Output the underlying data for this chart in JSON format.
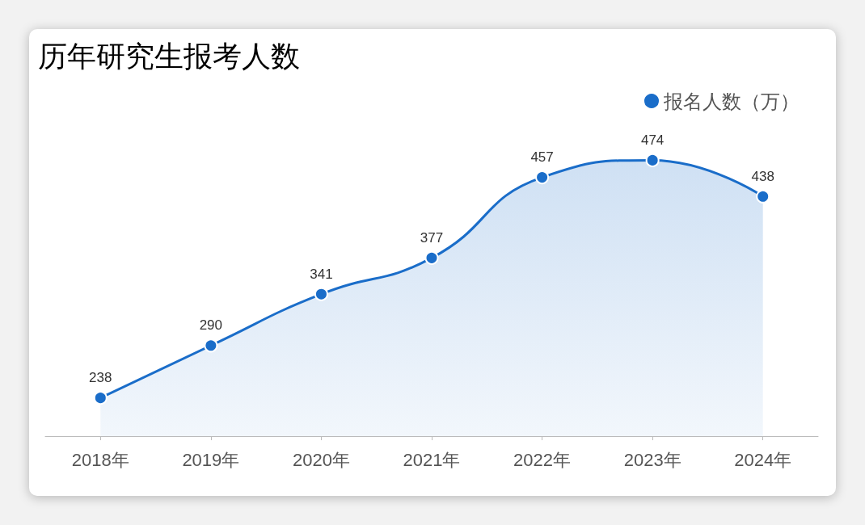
{
  "chart_data": {
    "type": "area",
    "title": "历年研究生报考人数",
    "categories": [
      "2018年",
      "2019年",
      "2020年",
      "2021年",
      "2022年",
      "2023年",
      "2024年"
    ],
    "series": [
      {
        "name": "报名人数（万）",
        "color": "#1a6dc9",
        "values": [
          238,
          290,
          341,
          377,
          457,
          474,
          438
        ]
      }
    ],
    "data_labels": true,
    "legend": "top right",
    "marker": "circle",
    "grid": false
  }
}
